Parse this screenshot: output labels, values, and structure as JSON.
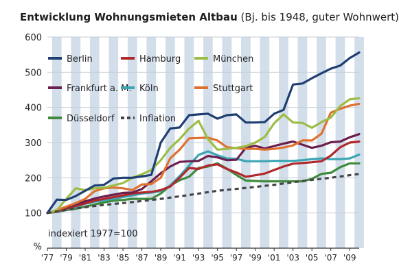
{
  "chart_data": {
    "type": "line",
    "title": "Entwicklung Wohnungsmieten Altbau",
    "subtitle": "(Bj. bis 1948, guter Wohnwert)",
    "ylabel": "%",
    "xlabel": "",
    "ylim": [
      0,
      600
    ],
    "yticks": [
      100,
      200,
      300,
      400,
      500,
      600
    ],
    "xlim": [
      1977,
      2010
    ],
    "x_tick_labels": [
      "'77",
      "'79",
      "'81",
      "'83",
      "'85",
      "'87",
      "'89",
      "'91",
      "'93",
      "'95",
      "'97",
      "'99",
      "'01",
      "'03",
      "'05",
      "'07",
      "'09"
    ],
    "annotation": "indexiert 1977=100",
    "background": "alternating vertical year bands",
    "legend_position": "top-left",
    "series": [
      {
        "name": "Berlin",
        "color": "#1f3f72",
        "dashed": false,
        "x": [
          1977,
          1978,
          1979,
          1980,
          1981,
          1982,
          1983,
          1984,
          1985,
          1986,
          1987,
          1988,
          1989,
          1990,
          1991,
          1992,
          1993,
          1994,
          1995,
          1996,
          1997,
          1998,
          1999,
          2000,
          2001,
          2002,
          2003,
          2004,
          2005,
          2006,
          2007,
          2008,
          2009,
          2010
        ],
        "values": [
          100,
          138,
          137,
          148,
          163,
          178,
          180,
          198,
          200,
          200,
          204,
          208,
          300,
          340,
          343,
          378,
          380,
          382,
          368,
          378,
          380,
          357,
          357,
          358,
          382,
          393,
          465,
          468,
          483,
          497,
          510,
          519,
          540,
          556
        ]
      },
      {
        "name": "Hamburg",
        "color": "#b0282c",
        "dashed": false,
        "x": [
          1977,
          1978,
          1979,
          1980,
          1981,
          1982,
          1983,
          1984,
          1985,
          1986,
          1987,
          1988,
          1989,
          1990,
          1991,
          1992,
          1993,
          1994,
          1995,
          1996,
          1997,
          1998,
          1999,
          2000,
          2001,
          2002,
          2003,
          2004,
          2005,
          2006,
          2007,
          2008,
          2009,
          2010
        ],
        "values": [
          100,
          105,
          112,
          120,
          127,
          135,
          140,
          145,
          150,
          155,
          158,
          160,
          165,
          175,
          200,
          228,
          225,
          235,
          238,
          225,
          215,
          203,
          207,
          212,
          222,
          232,
          240,
          242,
          244,
          247,
          263,
          287,
          300,
          303
        ]
      },
      {
        "name": "München",
        "color": "#9cbd45",
        "dashed": false,
        "x": [
          1977,
          1978,
          1979,
          1980,
          1981,
          1982,
          1983,
          1984,
          1985,
          1986,
          1987,
          1988,
          1989,
          1990,
          1991,
          1992,
          1993,
          1994,
          1995,
          1996,
          1997,
          1998,
          1999,
          2000,
          2001,
          2002,
          2003,
          2004,
          2005,
          2006,
          2007,
          2008,
          2009,
          2010
        ],
        "values": [
          100,
          108,
          140,
          170,
          165,
          170,
          172,
          178,
          185,
          200,
          210,
          222,
          250,
          285,
          310,
          340,
          362,
          310,
          280,
          282,
          285,
          290,
          300,
          316,
          355,
          380,
          357,
          356,
          342,
          358,
          371,
          404,
          423,
          426
        ]
      },
      {
        "name": "Frankfurt a. M.",
        "color": "#6b1f4d",
        "dashed": false,
        "x": [
          1977,
          1978,
          1979,
          1980,
          1981,
          1982,
          1983,
          1984,
          1985,
          1986,
          1987,
          1988,
          1989,
          1990,
          1991,
          1992,
          1993,
          1994,
          1995,
          1996,
          1997,
          1998,
          1999,
          2000,
          2001,
          2002,
          2003,
          2004,
          2005,
          2006,
          2007,
          2008,
          2009,
          2010
        ],
        "values": [
          100,
          108,
          117,
          124,
          133,
          141,
          147,
          152,
          157,
          158,
          168,
          190,
          213,
          232,
          245,
          247,
          248,
          262,
          258,
          250,
          251,
          285,
          291,
          283,
          290,
          297,
          303,
          294,
          285,
          291,
          301,
          303,
          315,
          324
        ]
      },
      {
        "name": "Köln",
        "color": "#3ba5b4",
        "dashed": false,
        "x": [
          1977,
          1978,
          1979,
          1980,
          1981,
          1982,
          1983,
          1984,
          1985,
          1986,
          1987,
          1988,
          1989,
          1990,
          1991,
          1992,
          1993,
          1994,
          1995,
          1996,
          1997,
          1998,
          1999,
          2000,
          2001,
          2002,
          2003,
          2004,
          2005,
          2006,
          2007,
          2008,
          2009,
          2010
        ],
        "values": [
          100,
          105,
          110,
          118,
          126,
          132,
          136,
          140,
          145,
          150,
          155,
          158,
          162,
          178,
          205,
          235,
          265,
          275,
          264,
          255,
          254,
          247,
          247,
          247,
          248,
          248,
          248,
          250,
          253,
          255,
          253,
          253,
          255,
          266
        ]
      },
      {
        "name": "Stuttgart",
        "color": "#df7130",
        "dashed": false,
        "x": [
          1977,
          1978,
          1979,
          1980,
          1981,
          1982,
          1983,
          1984,
          1985,
          1986,
          1987,
          1988,
          1989,
          1990,
          1991,
          1992,
          1993,
          1994,
          1995,
          1996,
          1997,
          1998,
          1999,
          2000,
          2001,
          2002,
          2003,
          2004,
          2005,
          2006,
          2007,
          2008,
          2009,
          2010
        ],
        "values": [
          100,
          108,
          118,
          128,
          140,
          162,
          170,
          172,
          170,
          165,
          181,
          182,
          200,
          255,
          280,
          312,
          313,
          314,
          306,
          287,
          284,
          282,
          282,
          280,
          282,
          286,
          292,
          306,
          306,
          325,
          385,
          396,
          405,
          410
        ]
      },
      {
        "name": "Düsseldorf",
        "color": "#3f8a3c",
        "dashed": false,
        "x": [
          1977,
          1978,
          1979,
          1980,
          1981,
          1982,
          1983,
          1984,
          1985,
          1986,
          1987,
          1988,
          1989,
          1990,
          1991,
          1992,
          1993,
          1994,
          1995,
          1996,
          1997,
          1998,
          1999,
          2000,
          2001,
          2002,
          2003,
          2004,
          2005,
          2006,
          2007,
          2008,
          2009,
          2010
        ],
        "values": [
          100,
          103,
          108,
          112,
          118,
          124,
          130,
          135,
          137,
          140,
          140,
          140,
          155,
          178,
          193,
          203,
          228,
          232,
          241,
          226,
          208,
          192,
          191,
          190,
          190,
          190,
          190,
          190,
          197,
          211,
          214,
          230,
          241,
          241
        ]
      },
      {
        "name": "Inflation",
        "color": "#454545",
        "dashed": true,
        "x": [
          1977,
          1980,
          1983,
          1986,
          1989,
          1992,
          1995,
          1998,
          2001,
          2004,
          2007,
          2010
        ],
        "values": [
          100,
          113,
          123,
          131,
          140,
          151,
          163,
          171,
          180,
          191,
          200,
          211
        ]
      }
    ]
  }
}
